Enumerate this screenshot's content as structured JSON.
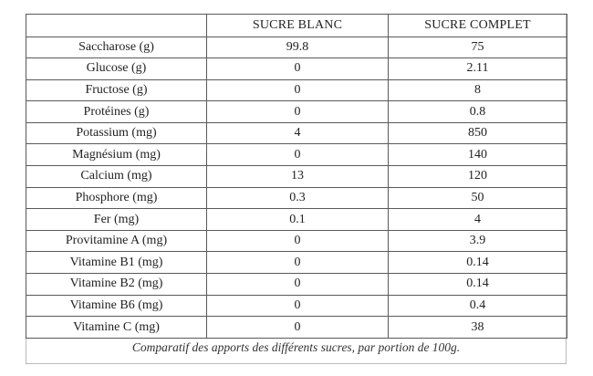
{
  "table": {
    "headers": [
      "",
      "SUCRE BLANC",
      "SUCRE COMPLET"
    ],
    "rows": [
      {
        "label": "Saccharose (g)",
        "blanc": "99.8",
        "complet": "75"
      },
      {
        "label": "Glucose (g)",
        "blanc": "0",
        "complet": "2.11"
      },
      {
        "label": "Fructose (g)",
        "blanc": "0",
        "complet": "8"
      },
      {
        "label": "Protéines (g)",
        "blanc": "0",
        "complet": "0.8"
      },
      {
        "label": "Potassium (mg)",
        "blanc": "4",
        "complet": "850"
      },
      {
        "label": "Magnésium (mg)",
        "blanc": "0",
        "complet": "140"
      },
      {
        "label": "Calcium (mg)",
        "blanc": "13",
        "complet": "120"
      },
      {
        "label": "Phosphore (mg)",
        "blanc": "0.3",
        "complet": "50"
      },
      {
        "label": "Fer (mg)",
        "blanc": "0.1",
        "complet": "4"
      },
      {
        "label": "Provitamine A (mg)",
        "blanc": "0",
        "complet": "3.9"
      },
      {
        "label": "Vitamine B1 (mg)",
        "blanc": "0",
        "complet": "0.14"
      },
      {
        "label": "Vitamine B2 (mg)",
        "blanc": "0",
        "complet": "0.14"
      },
      {
        "label": "Vitamine B6 (mg)",
        "blanc": "0",
        "complet": "0.4"
      },
      {
        "label": "Vitamine C (mg)",
        "blanc": "0",
        "complet": "38"
      }
    ]
  },
  "caption": "Comparatif des apports des différents sucres, par portion de 100g."
}
